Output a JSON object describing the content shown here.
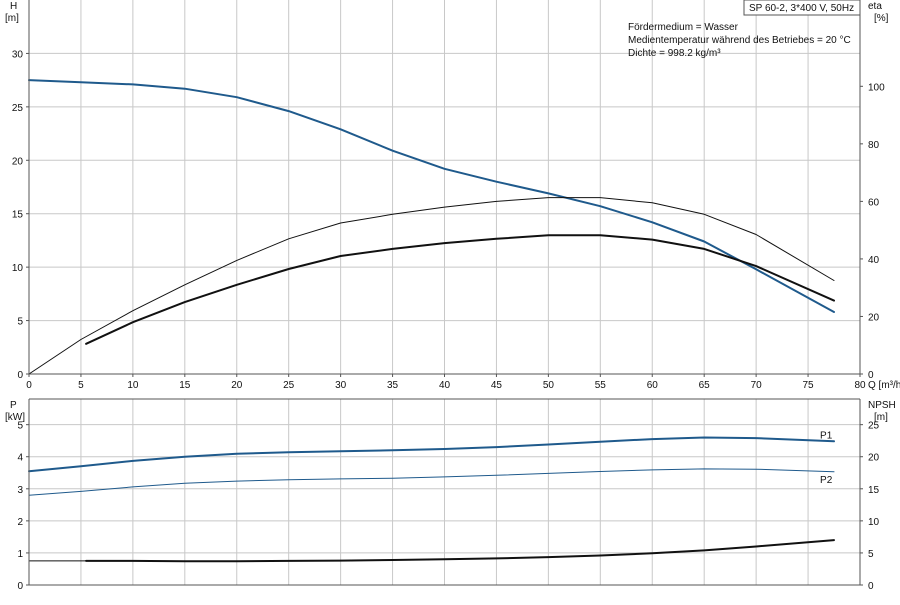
{
  "caption": "SP 60-2, 3*400 V, 50Hz",
  "info_lines": [
    "Fördermedium = Wasser",
    "Medientemperatur während des Betriebes = 20 °C",
    "Dichte = 998.2 kg/m³"
  ],
  "colors": {
    "blue": "#1f5a8c",
    "black": "#111111",
    "grid": "#c8c8c8",
    "frame": "#555555"
  },
  "chart_data": [
    {
      "type": "line",
      "x_label": "Q [m³/h]",
      "y_label": {
        "name": "H",
        "unit": "[m]"
      },
      "y2_label": {
        "name": "eta",
        "unit": "[%]"
      },
      "xlim": [
        0,
        80
      ],
      "ylim": [
        0,
        35
      ],
      "y2lim": [
        0,
        130
      ],
      "x_ticks": [
        0,
        5,
        10,
        15,
        20,
        25,
        30,
        35,
        40,
        45,
        50,
        55,
        60,
        65,
        70,
        75,
        80
      ],
      "y_ticks": [
        0,
        5,
        10,
        15,
        20,
        25,
        30
      ],
      "y2_ticks": [
        0,
        20,
        40,
        60,
        80,
        100
      ],
      "grid": true,
      "series": [
        {
          "axis": "left",
          "color": "blue",
          "width": 2,
          "x": [
            0,
            5,
            10,
            15,
            20,
            25,
            30,
            35,
            40,
            45,
            50,
            55,
            60,
            65,
            70,
            77.5
          ],
          "y": [
            27.5,
            27.3,
            27.1,
            26.7,
            25.9,
            24.6,
            22.9,
            20.9,
            19.2,
            18.0,
            16.9,
            15.7,
            14.2,
            12.4,
            9.8,
            5.8
          ]
        },
        {
          "axis": "right",
          "color": "black",
          "width": 1,
          "x": [
            0,
            5,
            10,
            15,
            20,
            25,
            30,
            35,
            40,
            45,
            50,
            55,
            60,
            65,
            70,
            77.5
          ],
          "y": [
            0,
            12,
            22,
            31,
            39.5,
            47,
            52.5,
            55.5,
            58,
            60,
            61.3,
            61.3,
            59.5,
            55.5,
            48.5,
            32.5
          ]
        },
        {
          "axis": "right",
          "color": "black",
          "width": 2,
          "x": [
            5.5,
            10,
            15,
            20,
            25,
            30,
            35,
            40,
            45,
            50,
            55,
            60,
            65,
            70,
            77.5
          ],
          "y": [
            10.5,
            18,
            25,
            31,
            36.5,
            41,
            43.5,
            45.5,
            47,
            48.2,
            48.2,
            46.7,
            43.5,
            37.5,
            25.5
          ]
        }
      ]
    },
    {
      "type": "line",
      "y_label": {
        "name": "P",
        "unit": "[kW]"
      },
      "y2_label": {
        "name": "NPSH",
        "unit": "[m]"
      },
      "xlim": [
        0,
        80
      ],
      "ylim": [
        0,
        5.8
      ],
      "y2lim": [
        0,
        29
      ],
      "y_ticks": [
        0,
        1,
        2,
        3,
        4,
        5
      ],
      "y2_ticks": [
        0,
        5,
        10,
        15,
        20,
        25
      ],
      "grid": true,
      "series": [
        {
          "name": "P1",
          "axis": "left",
          "color": "blue",
          "width": 2,
          "x": [
            0,
            5,
            10,
            15,
            20,
            25,
            30,
            35,
            40,
            45,
            50,
            55,
            60,
            65,
            70,
            77.5
          ],
          "y": [
            3.55,
            3.7,
            3.87,
            4.0,
            4.09,
            4.14,
            4.17,
            4.2,
            4.24,
            4.3,
            4.38,
            4.47,
            4.55,
            4.6,
            4.58,
            4.48
          ]
        },
        {
          "name": "P2",
          "axis": "left",
          "color": "blue",
          "width": 1,
          "x": [
            0,
            5,
            10,
            15,
            20,
            25,
            30,
            35,
            40,
            45,
            50,
            55,
            60,
            65,
            70,
            77.5
          ],
          "y": [
            2.8,
            2.92,
            3.06,
            3.17,
            3.24,
            3.28,
            3.31,
            3.33,
            3.37,
            3.42,
            3.48,
            3.54,
            3.59,
            3.62,
            3.61,
            3.53
          ]
        },
        {
          "axis": "left",
          "color": "black",
          "width": 1,
          "x": [
            0,
            5.5
          ],
          "y": [
            0.75,
            0.75
          ]
        },
        {
          "axis": "left",
          "color": "black",
          "width": 2,
          "x": [
            5.5,
            10,
            15,
            20,
            25,
            30,
            35,
            40,
            45,
            50,
            55,
            60,
            65,
            70,
            77.5
          ],
          "y": [
            0.75,
            0.75,
            0.74,
            0.74,
            0.75,
            0.76,
            0.78,
            0.8,
            0.83,
            0.87,
            0.92,
            0.99,
            1.08,
            1.2,
            1.4
          ]
        }
      ]
    }
  ]
}
